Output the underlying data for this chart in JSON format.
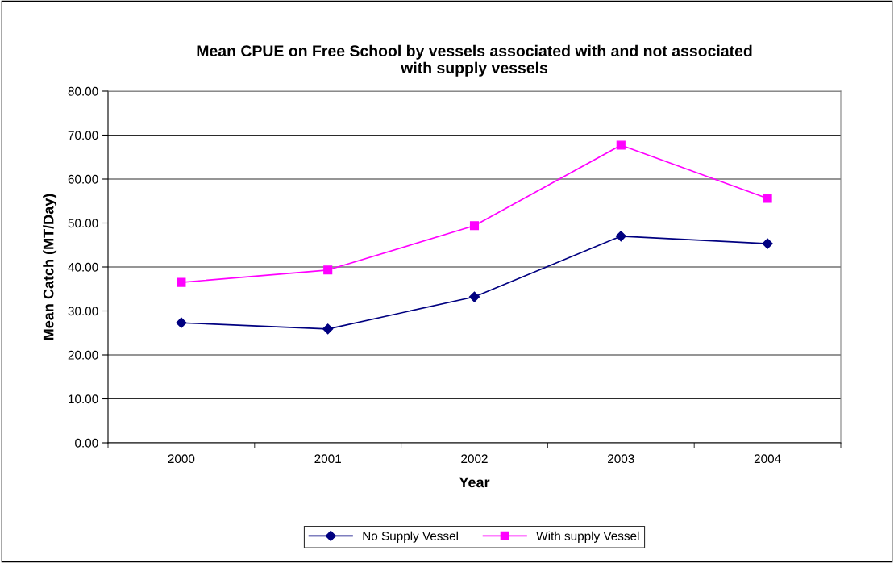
{
  "chart_data": {
    "type": "line",
    "title": "Mean CPUE on Free School by vessels associated with and not associated\nwith supply vessels",
    "xlabel": "Year",
    "ylabel": "Mean Catch (MT/Day)",
    "categories": [
      "2000",
      "2001",
      "2002",
      "2003",
      "2004"
    ],
    "series": [
      {
        "name": "No Supply Vessel",
        "color": "#000080",
        "marker": "diamond",
        "values": [
          27.3,
          25.9,
          33.2,
          47.0,
          45.3
        ]
      },
      {
        "name": "With supply Vessel",
        "color": "#ff00ff",
        "marker": "square",
        "values": [
          36.5,
          39.3,
          49.4,
          67.7,
          55.6
        ]
      }
    ],
    "ylim": [
      0,
      80
    ],
    "yticks": [
      {
        "value": 0,
        "label": "0.00"
      },
      {
        "value": 10,
        "label": "10.00"
      },
      {
        "value": 20,
        "label": "20.00"
      },
      {
        "value": 30,
        "label": "30.00"
      },
      {
        "value": 40,
        "label": "40.00"
      },
      {
        "value": 50,
        "label": "50.00"
      },
      {
        "value": 60,
        "label": "60.00"
      },
      {
        "value": 70,
        "label": "70.00"
      },
      {
        "value": 80,
        "label": "80.00"
      }
    ],
    "grid": "y",
    "legend": "bottom",
    "line_style": "solid"
  }
}
